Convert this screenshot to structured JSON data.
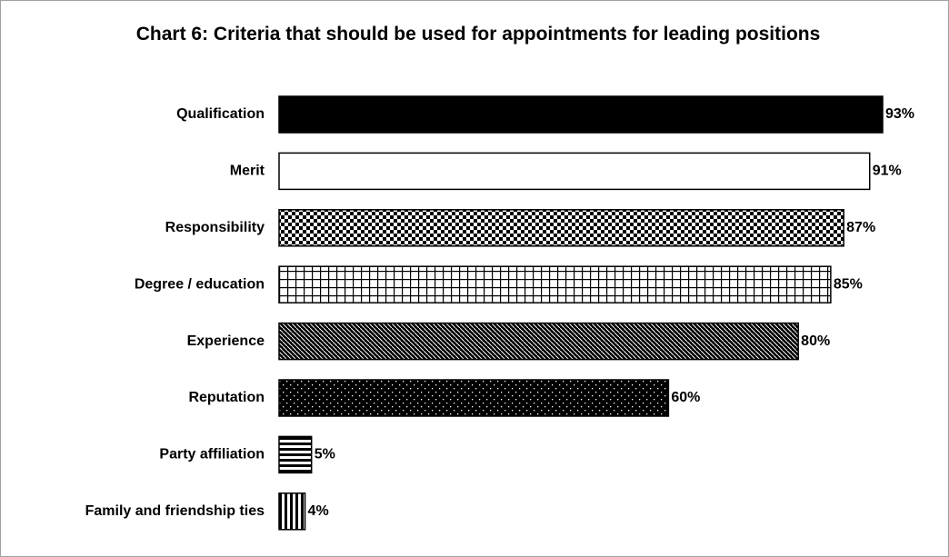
{
  "chart_data": {
    "type": "bar",
    "orientation": "horizontal",
    "title": "Chart 6: Criteria that should be used for appointments for leading positions",
    "categories": [
      "Qualification",
      "Merit",
      "Responsibility",
      "Degree / education",
      "Experience",
      "Reputation",
      "Party affiliation",
      "Family and friendship ties"
    ],
    "values": [
      93,
      91,
      87,
      85,
      80,
      60,
      5,
      4
    ],
    "value_labels": [
      "93%",
      "91%",
      "87%",
      "85%",
      "80%",
      "60%",
      "5%",
      "4%"
    ],
    "color": "#000000"
  }
}
